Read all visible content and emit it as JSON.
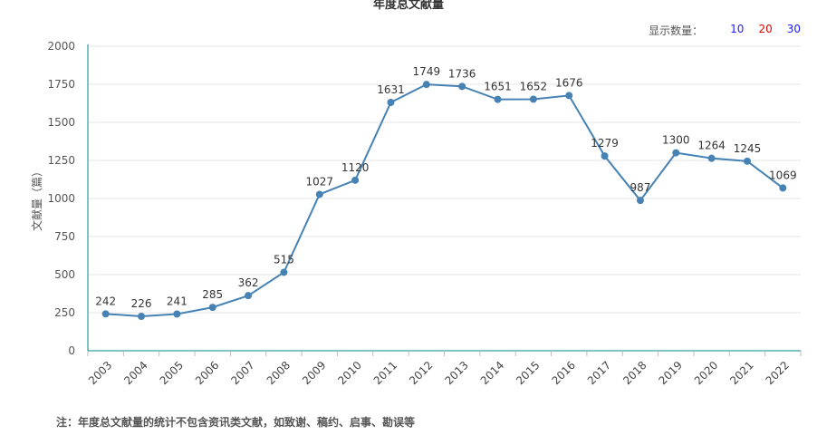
{
  "header": {
    "title": "年度总文献量",
    "display_count_label": "显示数量：",
    "display_options": [
      {
        "label": "10",
        "color": "#1a1aff"
      },
      {
        "label": "20",
        "color": "#e00000"
      },
      {
        "label": "30",
        "color": "#1a1aff"
      }
    ]
  },
  "note": "注：年度总文献量的统计不包含资讯类文献，如致谢、稿约、启事、勘误等",
  "chart_data": {
    "type": "line",
    "title": "年度总文献量",
    "xlabel": "",
    "ylabel": "文献量（篇）",
    "x": [
      "2003",
      "2004",
      "2005",
      "2006",
      "2007",
      "2008",
      "2009",
      "2010",
      "2011",
      "2012",
      "2013",
      "2014",
      "2015",
      "2016",
      "2017",
      "2018",
      "2019",
      "2020",
      "2021",
      "2022"
    ],
    "values": [
      242,
      226,
      241,
      285,
      362,
      515,
      1027,
      1120,
      1631,
      1749,
      1736,
      1651,
      1652,
      1676,
      1279,
      987,
      1300,
      1264,
      1245,
      1069
    ],
    "ylim": [
      0,
      2000
    ],
    "yticks": [
      0,
      250,
      500,
      750,
      1000,
      1250,
      1500,
      1750,
      2000
    ],
    "grid": true,
    "line_color": "#4682b4",
    "axis_color": "#008b8b"
  }
}
